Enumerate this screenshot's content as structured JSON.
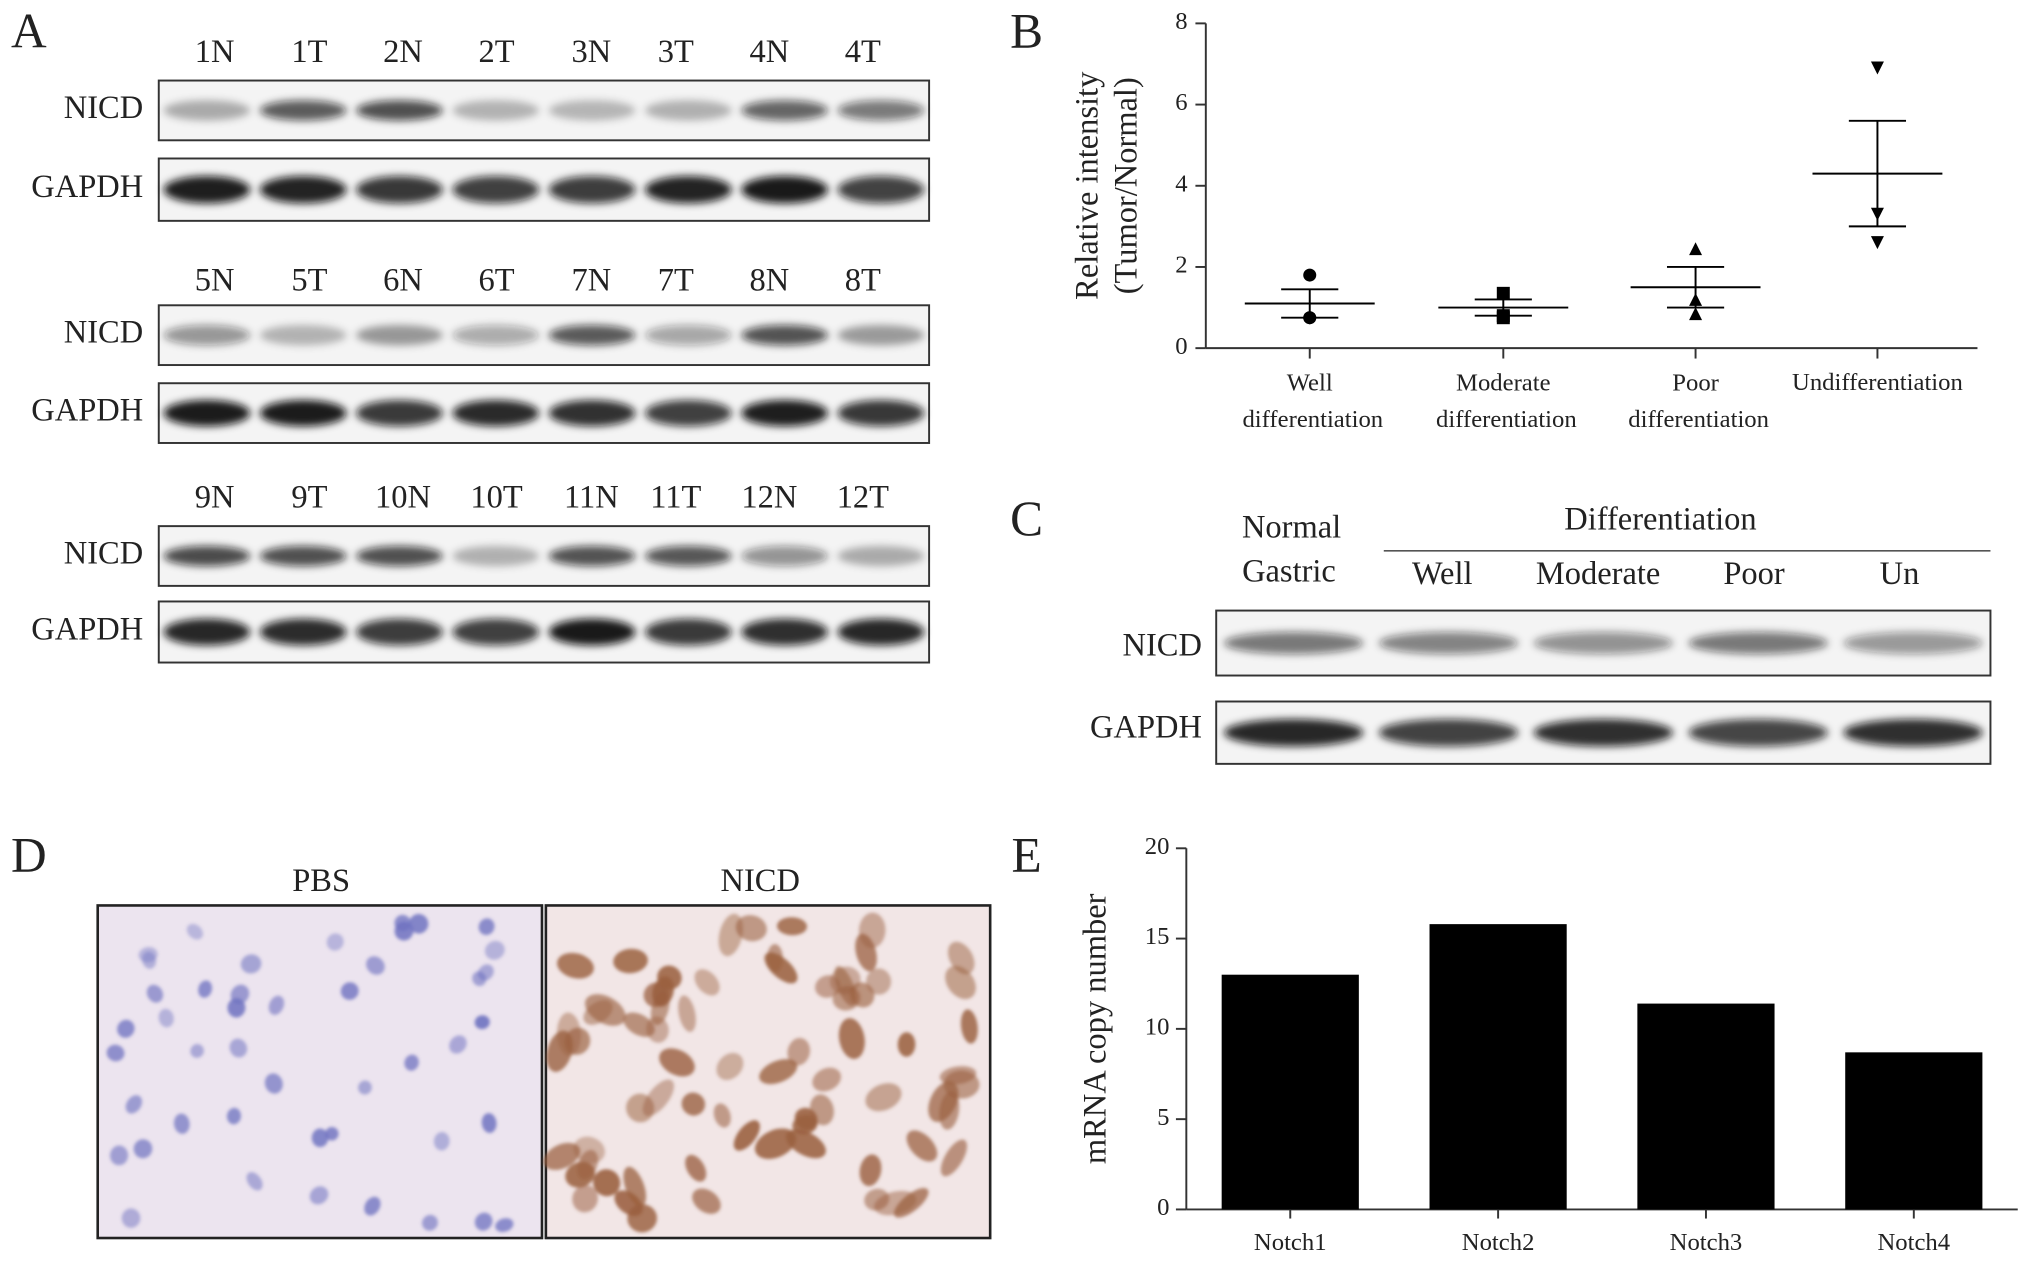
{
  "panel_labels": [
    "A",
    "B",
    "C",
    "D",
    "E"
  ],
  "blots_a": [
    {
      "lanes": [
        "1N",
        "1T",
        "2N",
        "2T",
        "3N",
        "3T",
        "4N",
        "4T"
      ],
      "rows": [
        "NICD",
        "GAPDH"
      ]
    },
    {
      "lanes": [
        "5N",
        "5T",
        "6N",
        "6T",
        "7N",
        "7T",
        "8N",
        "8T"
      ],
      "rows": [
        "NICD",
        "GAPDH"
      ]
    },
    {
      "lanes": [
        "9N",
        "9T",
        "10N",
        "10T",
        "11N",
        "11T",
        "12N",
        "12T"
      ],
      "rows": [
        "NICD",
        "GAPDH"
      ]
    }
  ],
  "blot_c": {
    "normal_label": [
      "Normal",
      "Gastric"
    ],
    "group_label": "Differentiation",
    "lanes": [
      "Well",
      "Moderate",
      "Poor",
      "Un"
    ],
    "rows": [
      "NICD",
      "GAPDH"
    ]
  },
  "panel_d": {
    "titles": [
      "PBS",
      "NICD"
    ]
  },
  "chart_data": [
    {
      "type": "scatter",
      "ylabel": [
        "Relative intensity",
        "(Tumor/Normal)"
      ],
      "categories": [
        "Well differentiation",
        "Moderate differentiation",
        "Poor differentiation",
        "Undifferentiation"
      ],
      "markers": [
        "circle",
        "square",
        "triangle",
        "triangle-down"
      ],
      "points": [
        [
          1.8,
          0.75,
          0.75
        ],
        [
          1.35,
          0.8,
          0.75
        ],
        [
          2.45,
          1.2,
          0.85
        ],
        [
          6.9,
          3.3,
          2.6
        ]
      ],
      "means": [
        1.1,
        1.0,
        1.5,
        4.3
      ],
      "sem": [
        0.35,
        0.2,
        0.5,
        1.3
      ],
      "color": "#000000",
      "ylim": [
        0,
        8
      ],
      "yticks": [
        0,
        2,
        4,
        6,
        8
      ]
    },
    {
      "type": "bar",
      "ylabel": "mRNA copy number",
      "categories": [
        "Notch1",
        "Notch2",
        "Notch3",
        "Notch4"
      ],
      "values": [
        13,
        15.8,
        11.4,
        8.7
      ],
      "color": "#000000",
      "ylim": [
        0,
        20
      ],
      "yticks": [
        0,
        5,
        10,
        15,
        20
      ]
    }
  ]
}
